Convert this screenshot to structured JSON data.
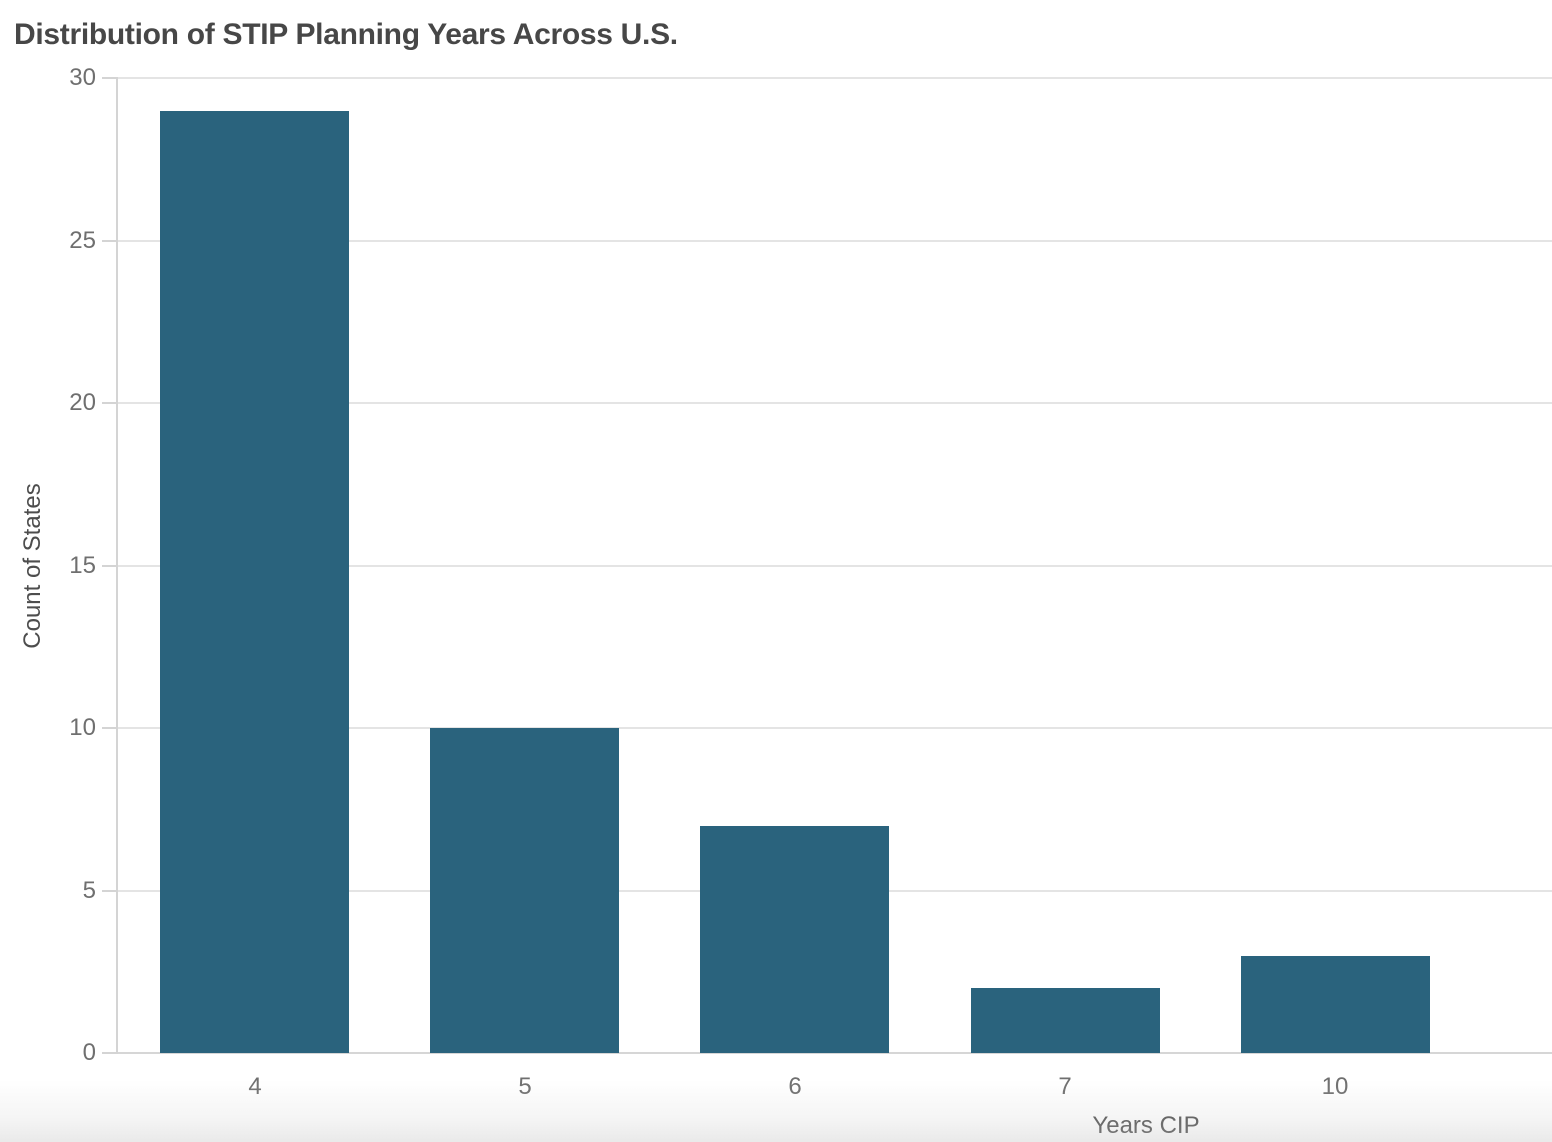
{
  "title": "Distribution of STIP Planning Years Across U.S.",
  "chart_data": {
    "type": "bar",
    "categories": [
      "4",
      "5",
      "6",
      "7",
      "10"
    ],
    "values": [
      29,
      10,
      7,
      2,
      3
    ],
    "title": "Distribution of STIP Planning Years Across U.S.",
    "xlabel": "Years CIP",
    "ylabel": "Count of States",
    "ylim": [
      0,
      30
    ],
    "yticks": [
      0,
      5,
      10,
      15,
      20,
      25,
      30
    ],
    "grid": true,
    "legend": "none",
    "bar_color": "#2a637d"
  },
  "colors": {
    "bar": "#2a637d",
    "gridline": "#e4e4e4",
    "axis_line": "#d4d4d4",
    "tick_label": "#6f6f6f",
    "axis_title": "#4d4d4d",
    "chart_title": "#474747",
    "background": "#ffffff"
  }
}
